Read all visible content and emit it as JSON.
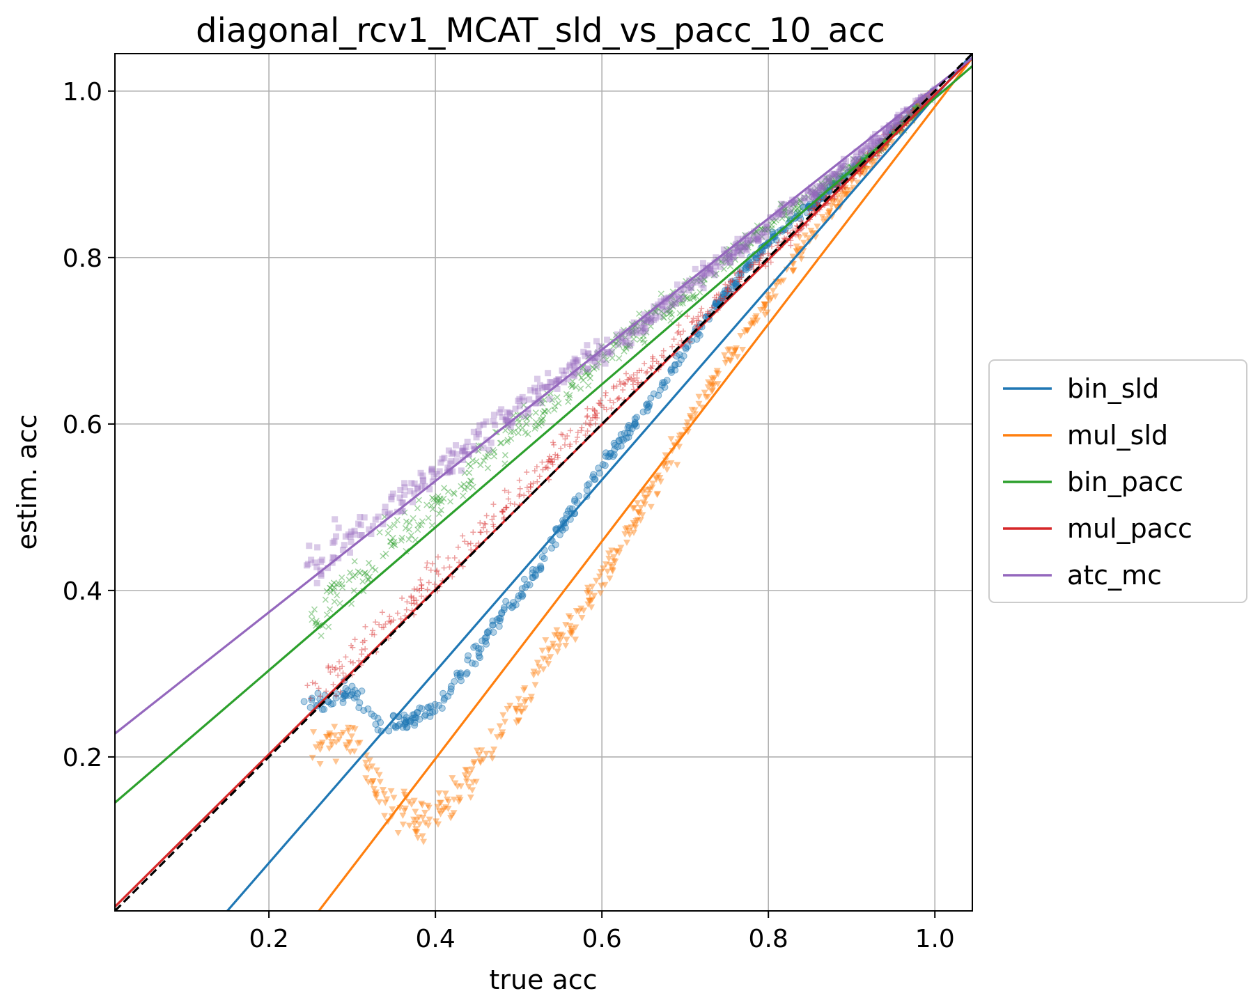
{
  "chart_data": {
    "type": "scatter",
    "title": "diagonal_rcv1_MCAT_sld_vs_pacc_10_acc",
    "xlabel": "true acc",
    "ylabel": "estim. acc",
    "xlim": [
      0.015,
      1.045
    ],
    "ylim": [
      0.015,
      1.045
    ],
    "xticks": [
      0.2,
      0.4,
      0.6,
      0.8,
      1.0
    ],
    "yticks": [
      0.2,
      0.4,
      0.6,
      0.8,
      1.0
    ],
    "xtick_labels": [
      "0.2",
      "0.4",
      "0.6",
      "0.8",
      "1.0"
    ],
    "ytick_labels": [
      "0.2",
      "0.4",
      "0.6",
      "0.8",
      "1.0"
    ],
    "grid": true,
    "legend_position": "outside-right",
    "diagonal": {
      "style": "black dashed",
      "points": [
        [
          0.015,
          0.015
        ],
        [
          1.045,
          1.045
        ]
      ]
    },
    "series": [
      {
        "name": "bin_sld",
        "color": "#1f77b4",
        "marker": "circle",
        "fit_line": [
          [
            0.15,
            0.015
          ],
          [
            1.045,
            1.045
          ]
        ],
        "x_range": [
          0.25,
          1.0
        ],
        "points": [
          [
            0.26,
            0.26
          ],
          [
            0.3,
            0.28
          ],
          [
            0.33,
            0.24
          ],
          [
            0.36,
            0.24
          ],
          [
            0.4,
            0.26
          ],
          [
            0.44,
            0.31
          ],
          [
            0.48,
            0.37
          ],
          [
            0.52,
            0.42
          ],
          [
            0.56,
            0.49
          ],
          [
            0.6,
            0.55
          ],
          [
            0.64,
            0.6
          ],
          [
            0.68,
            0.66
          ],
          [
            0.72,
            0.72
          ],
          [
            0.76,
            0.77
          ],
          [
            0.8,
            0.82
          ],
          [
            0.86,
            0.87
          ],
          [
            0.93,
            0.93
          ],
          [
            1.0,
            1.0
          ]
        ]
      },
      {
        "name": "mul_sld",
        "color": "#ff7f0e",
        "marker": "triangle-down",
        "fit_line": [
          [
            0.26,
            0.015
          ],
          [
            1.045,
            1.04
          ]
        ],
        "x_range": [
          0.25,
          1.0
        ],
        "points": [
          [
            0.26,
            0.2
          ],
          [
            0.3,
            0.23
          ],
          [
            0.32,
            0.18
          ],
          [
            0.34,
            0.15
          ],
          [
            0.38,
            0.12
          ],
          [
            0.42,
            0.15
          ],
          [
            0.46,
            0.2
          ],
          [
            0.5,
            0.26
          ],
          [
            0.54,
            0.33
          ],
          [
            0.58,
            0.38
          ],
          [
            0.62,
            0.45
          ],
          [
            0.66,
            0.52
          ],
          [
            0.7,
            0.59
          ],
          [
            0.74,
            0.66
          ],
          [
            0.78,
            0.72
          ],
          [
            0.82,
            0.78
          ],
          [
            0.86,
            0.84
          ],
          [
            0.92,
            0.91
          ],
          [
            0.97,
            0.97
          ],
          [
            1.0,
            1.0
          ]
        ]
      },
      {
        "name": "bin_pacc",
        "color": "#2ca02c",
        "marker": "x",
        "fit_line": [
          [
            0.015,
            0.145
          ],
          [
            1.045,
            1.03
          ]
        ],
        "x_range": [
          0.25,
          1.0
        ],
        "points": [
          [
            0.25,
            0.36
          ],
          [
            0.28,
            0.4
          ],
          [
            0.32,
            0.43
          ],
          [
            0.36,
            0.47
          ],
          [
            0.4,
            0.5
          ],
          [
            0.44,
            0.54
          ],
          [
            0.48,
            0.58
          ],
          [
            0.52,
            0.61
          ],
          [
            0.56,
            0.64
          ],
          [
            0.6,
            0.68
          ],
          [
            0.64,
            0.71
          ],
          [
            0.68,
            0.74
          ],
          [
            0.72,
            0.77
          ],
          [
            0.76,
            0.81
          ],
          [
            0.8,
            0.84
          ],
          [
            0.86,
            0.88
          ],
          [
            0.93,
            0.93
          ],
          [
            1.0,
            1.0
          ]
        ]
      },
      {
        "name": "mul_pacc",
        "color": "#d62728",
        "marker": "plus",
        "fit_line": [
          [
            0.015,
            0.02
          ],
          [
            1.045,
            1.04
          ]
        ],
        "x_range": [
          0.25,
          1.0
        ],
        "points": [
          [
            0.25,
            0.28
          ],
          [
            0.3,
            0.32
          ],
          [
            0.34,
            0.36
          ],
          [
            0.38,
            0.4
          ],
          [
            0.42,
            0.44
          ],
          [
            0.46,
            0.48
          ],
          [
            0.5,
            0.52
          ],
          [
            0.54,
            0.56
          ],
          [
            0.58,
            0.6
          ],
          [
            0.62,
            0.64
          ],
          [
            0.66,
            0.67
          ],
          [
            0.7,
            0.71
          ],
          [
            0.74,
            0.75
          ],
          [
            0.78,
            0.79
          ],
          [
            0.82,
            0.82
          ],
          [
            0.86,
            0.86
          ],
          [
            0.93,
            0.93
          ],
          [
            1.0,
            1.0
          ]
        ]
      },
      {
        "name": "atc_mc",
        "color": "#9467bd",
        "marker": "square",
        "fit_line": [
          [
            0.015,
            0.228
          ],
          [
            1.045,
            1.04
          ]
        ],
        "x_range": [
          0.25,
          1.0
        ],
        "points": [
          [
            0.25,
            0.43
          ],
          [
            0.29,
            0.46
          ],
          [
            0.33,
            0.49
          ],
          [
            0.37,
            0.52
          ],
          [
            0.41,
            0.55
          ],
          [
            0.45,
            0.58
          ],
          [
            0.49,
            0.61
          ],
          [
            0.53,
            0.64
          ],
          [
            0.57,
            0.67
          ],
          [
            0.61,
            0.69
          ],
          [
            0.64,
            0.71
          ],
          [
            0.67,
            0.74
          ],
          [
            0.71,
            0.77
          ],
          [
            0.75,
            0.8
          ],
          [
            0.79,
            0.83
          ],
          [
            0.82,
            0.86
          ],
          [
            0.86,
            0.88
          ],
          [
            0.89,
            0.91
          ],
          [
            0.93,
            0.94
          ],
          [
            0.96,
            0.97
          ],
          [
            1.0,
            1.0
          ]
        ]
      }
    ]
  }
}
